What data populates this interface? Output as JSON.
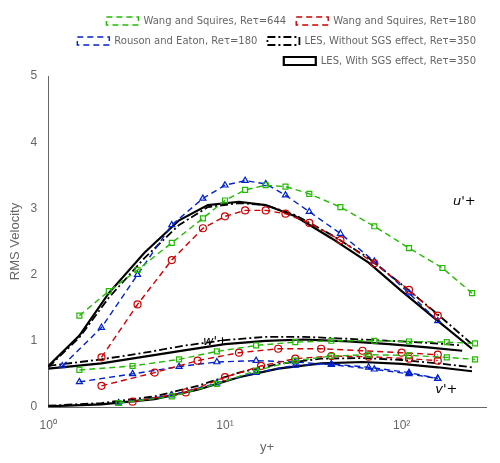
{
  "chart_data": {
    "type": "line",
    "xlabel": "y+",
    "ylabel": "RMS Velocity",
    "log": "x",
    "xlim": [
      1,
      300
    ],
    "ylim": [
      0,
      5
    ],
    "xticks": [
      {
        "value": 1,
        "label": "10⁰"
      },
      {
        "value": 10,
        "label": "10¹"
      },
      {
        "value": 100,
        "label": "10²"
      }
    ],
    "yticks": [
      0,
      1,
      2,
      3,
      4,
      5
    ],
    "grid": false,
    "legend": "upper right",
    "annotations": [
      {
        "text": "u'+",
        "x": 195,
        "y": 3.05
      },
      {
        "text": "w'+",
        "x": 7.5,
        "y": 0.93
      },
      {
        "text": "v'+",
        "x": 155,
        "y": 0.21
      }
    ],
    "series": [
      {
        "name": "Wang and Squires, Reτ=644",
        "color": "#22bb00",
        "marker": "square",
        "line_style": "dashed",
        "x": [
          [
            1.5,
            2.2,
            3.2,
            5.0,
            7.5,
            10,
            13,
            17,
            22,
            30,
            45,
            70,
            110,
            170,
            250
          ],
          [
            2.5,
            5.0,
            9.0,
            15,
            25,
            40,
            65,
            110,
            180,
            260
          ],
          [
            1.5,
            3.0,
            5.5,
            9.0,
            15,
            25,
            40,
            70,
            110,
            180,
            260
          ]
        ],
        "values": [
          [
            1.38,
            1.75,
            2.07,
            2.48,
            2.85,
            3.12,
            3.28,
            3.35,
            3.33,
            3.22,
            3.02,
            2.73,
            2.4,
            2.1,
            1.72
          ],
          [
            0.06,
            0.16,
            0.35,
            0.55,
            0.7,
            0.77,
            0.79,
            0.78,
            0.75,
            0.72
          ],
          [
            0.56,
            0.62,
            0.72,
            0.84,
            0.93,
            0.98,
            1.0,
            1.0,
            0.99,
            0.98,
            0.96
          ]
        ]
      },
      {
        "name": "Wang and Squires, Reτ=180",
        "color": "#cc0000",
        "marker": "circle",
        "line_style": "dashed",
        "x": [
          [
            2.0,
            3.2,
            5.0,
            7.5,
            10,
            13,
            17,
            22,
            30,
            45,
            70,
            110,
            160
          ],
          [
            3.0,
            6.0,
            10,
            16,
            25,
            40,
            65,
            110,
            160
          ],
          [
            2.0,
            4.0,
            7.0,
            12,
            20,
            35,
            60,
            100,
            160
          ]
        ],
        "values": [
          [
            0.75,
            1.55,
            2.22,
            2.7,
            2.88,
            2.97,
            2.97,
            2.92,
            2.78,
            2.52,
            2.17,
            1.77,
            1.38
          ],
          [
            0.08,
            0.22,
            0.45,
            0.62,
            0.73,
            0.77,
            0.76,
            0.73,
            0.7
          ],
          [
            0.32,
            0.52,
            0.7,
            0.82,
            0.88,
            0.88,
            0.85,
            0.82,
            0.79
          ]
        ]
      },
      {
        "name": "Rouson and Eaton, Reτ=180",
        "color": "#0022cc",
        "marker": "triangle",
        "line_style": "dashed",
        "x": [
          [
            1.2,
            2.0,
            3.2,
            5.0,
            7.5,
            10,
            13,
            17,
            22,
            30,
            45,
            70,
            110,
            160
          ],
          [
            2.5,
            5.0,
            9.0,
            15,
            25,
            40,
            65,
            110,
            160
          ],
          [
            1.5,
            3.0,
            5.5,
            9.0,
            15,
            25,
            40,
            70,
            110,
            160
          ]
        ],
        "values": [
          [
            0.62,
            1.2,
            2.0,
            2.75,
            3.15,
            3.35,
            3.42,
            3.37,
            3.2,
            2.95,
            2.62,
            2.2,
            1.72,
            1.3
          ],
          [
            0.06,
            0.18,
            0.36,
            0.52,
            0.63,
            0.65,
            0.6,
            0.52,
            0.43
          ],
          [
            0.38,
            0.5,
            0.61,
            0.68,
            0.7,
            0.68,
            0.64,
            0.57,
            0.5,
            0.43
          ]
        ]
      },
      {
        "name": "LES, Without SGS effect, Reτ=350",
        "color": "#000000",
        "line_style": "dashdot",
        "x": [
          [
            1.0,
            1.5,
            2.2,
            3.5,
            5.5,
            8.0,
            12,
            17,
            25,
            40,
            65,
            100,
            160,
            250
          ],
          [
            1.0,
            2.0,
            4.0,
            7.0,
            12,
            20,
            35,
            60,
            100,
            160,
            250
          ],
          [
            1.0,
            2.0,
            3.5,
            6.0,
            10,
            17,
            28,
            50,
            85,
            140,
            220
          ]
        ],
        "values": [
          [
            0.6,
            1.05,
            1.65,
            2.25,
            2.75,
            3.02,
            3.08,
            3.05,
            2.9,
            2.6,
            2.25,
            1.85,
            1.4,
            0.95
          ],
          [
            0.02,
            0.06,
            0.16,
            0.32,
            0.52,
            0.65,
            0.73,
            0.74,
            0.71,
            0.66,
            0.6
          ],
          [
            0.62,
            0.72,
            0.82,
            0.93,
            1.01,
            1.06,
            1.06,
            1.03,
            1.0,
            0.97,
            0.93
          ]
        ]
      },
      {
        "name": "LES, With SGS effect, Reτ=350",
        "color": "#000000",
        "line_style": "solid",
        "x": [
          [
            1.0,
            1.5,
            2.2,
            3.5,
            5.5,
            8.0,
            12,
            17,
            25,
            40,
            65,
            100,
            160,
            250
          ],
          [
            1.0,
            2.0,
            4.0,
            7.0,
            12,
            20,
            35,
            60,
            100,
            160,
            250
          ],
          [
            1.0,
            2.0,
            3.5,
            6.0,
            10,
            17,
            28,
            50,
            85,
            140,
            220
          ]
        ],
        "values": [
          [
            0.62,
            1.08,
            1.72,
            2.33,
            2.82,
            3.05,
            3.1,
            3.05,
            2.88,
            2.55,
            2.18,
            1.75,
            1.3,
            0.88
          ],
          [
            0.01,
            0.04,
            0.12,
            0.26,
            0.45,
            0.58,
            0.66,
            0.68,
            0.65,
            0.6,
            0.54
          ],
          [
            0.58,
            0.66,
            0.76,
            0.86,
            0.95,
            1.0,
            1.02,
            0.99,
            0.95,
            0.9,
            0.85
          ]
        ]
      }
    ]
  }
}
